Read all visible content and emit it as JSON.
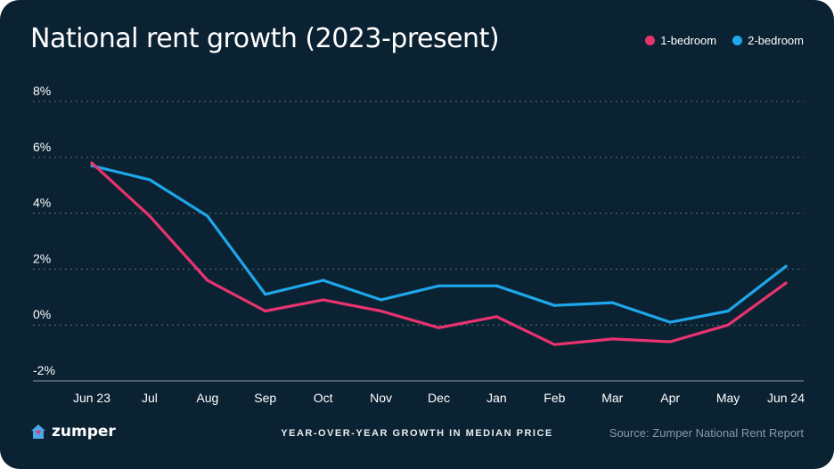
{
  "title": "National rent growth (2023-present)",
  "legend": [
    {
      "label": "1-bedroom",
      "color": "#e8336f"
    },
    {
      "label": "2-bedroom",
      "color": "#1ea7ea"
    }
  ],
  "footer": {
    "logo_text": "zumper",
    "subtitle": "YEAR-OVER-YEAR GROWTH IN MEDIAN PRICE",
    "source": "Source: Zumper National Rent Report"
  },
  "colors": {
    "background": "#0b2233",
    "grid": "#5d6e7b",
    "accent_pink": "#e8336f",
    "accent_blue": "#1ea7ea"
  },
  "chart_data": {
    "type": "line",
    "title": "National rent growth (2023-present)",
    "categories": [
      "Jun 23",
      "Jul",
      "Aug",
      "Sep",
      "Oct",
      "Nov",
      "Dec",
      "Jan",
      "Feb",
      "Mar",
      "Apr",
      "May",
      "Jun 24"
    ],
    "y_ticks": [
      "-2%",
      "0%",
      "2%",
      "4%",
      "6%",
      "8%"
    ],
    "ylim": [
      -2,
      8
    ],
    "grid": true,
    "legend_position": "top-right",
    "series": [
      {
        "name": "1-bedroom",
        "color": "#e8336f",
        "values": [
          5.8,
          3.9,
          1.6,
          0.5,
          0.9,
          0.5,
          -0.1,
          0.3,
          -0.7,
          -0.5,
          -0.6,
          0.0,
          1.5
        ]
      },
      {
        "name": "2-bedroom",
        "color": "#1ea7ea",
        "values": [
          5.7,
          5.2,
          3.9,
          1.1,
          1.6,
          0.9,
          1.4,
          1.4,
          0.7,
          0.8,
          0.1,
          0.5,
          2.1
        ]
      }
    ]
  }
}
